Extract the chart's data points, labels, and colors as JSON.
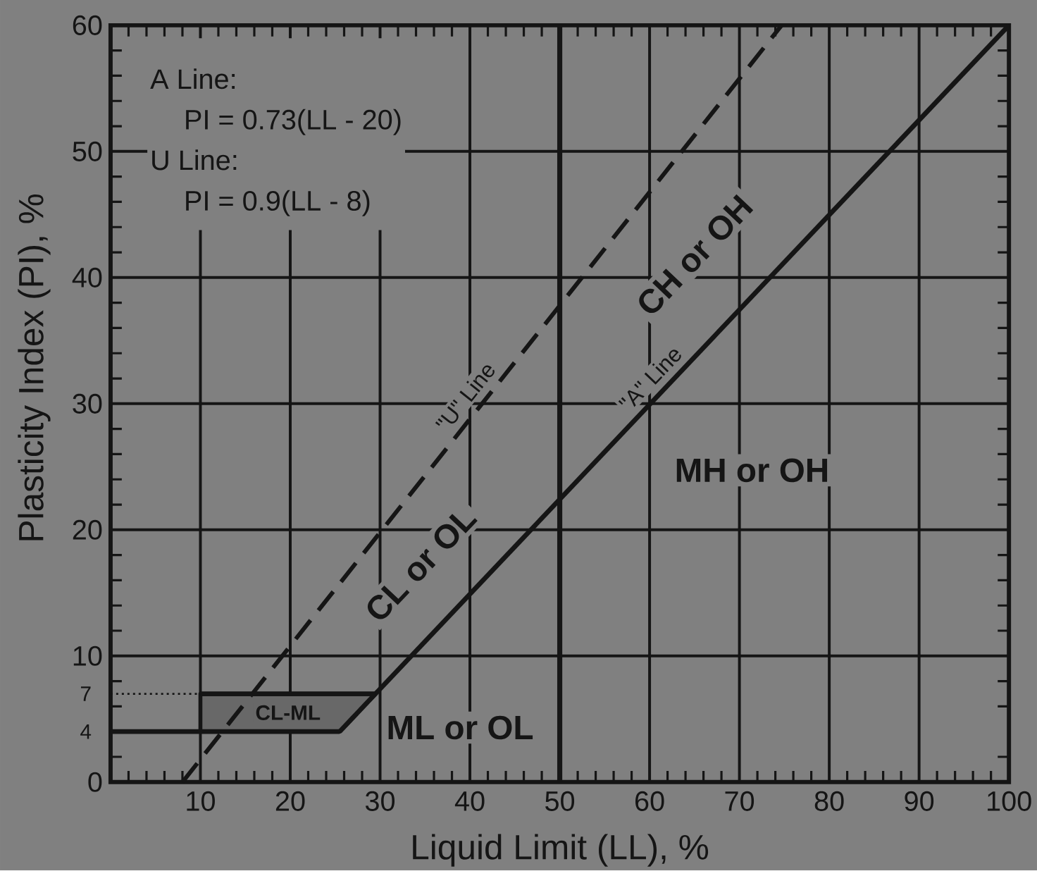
{
  "chart_data": {
    "type": "line",
    "xlabel": "Liquid Limit (LL), %",
    "ylabel": "Plasticity Index (PI), %",
    "xlim": [
      0,
      100
    ],
    "ylim": [
      0,
      60
    ],
    "xticks": [
      {
        "value": 2,
        "label": null
      },
      {
        "value": 4,
        "label": null
      },
      {
        "value": 6,
        "label": null
      },
      {
        "value": 8,
        "label": null
      },
      10,
      {
        "value": 12,
        "label": null
      },
      {
        "value": 14,
        "label": null
      },
      {
        "value": 16,
        "label": null
      },
      {
        "value": 18,
        "label": null
      },
      20,
      {
        "value": 22,
        "label": null
      },
      {
        "value": 24,
        "label": null
      },
      {
        "value": 26,
        "label": null
      },
      {
        "value": 28,
        "label": null
      },
      30,
      {
        "value": 32,
        "label": null
      },
      {
        "value": 34,
        "label": null
      },
      {
        "value": 36,
        "label": null
      },
      {
        "value": 38,
        "label": null
      },
      40,
      {
        "value": 42,
        "label": null
      },
      {
        "value": 44,
        "label": null
      },
      {
        "value": 46,
        "label": null
      },
      {
        "value": 48,
        "label": null
      },
      50,
      {
        "value": 52,
        "label": null
      },
      {
        "value": 54,
        "label": null
      },
      {
        "value": 56,
        "label": null
      },
      {
        "value": 58,
        "label": null
      },
      60,
      {
        "value": 62,
        "label": null
      },
      {
        "value": 64,
        "label": null
      },
      {
        "value": 66,
        "label": null
      },
      {
        "value": 68,
        "label": null
      },
      70,
      {
        "value": 72,
        "label": null
      },
      {
        "value": 74,
        "label": null
      },
      {
        "value": 76,
        "label": null
      },
      {
        "value": 78,
        "label": null
      },
      80,
      {
        "value": 82,
        "label": null
      },
      {
        "value": 84,
        "label": null
      },
      {
        "value": 86,
        "label": null
      },
      {
        "value": 88,
        "label": null
      },
      90,
      {
        "value": 92,
        "label": null
      },
      {
        "value": 94,
        "label": null
      },
      {
        "value": 96,
        "label": null
      },
      {
        "value": 98,
        "label": null
      },
      100
    ],
    "yticks": [
      0,
      {
        "value": 2,
        "label": null
      },
      4,
      {
        "value": 6,
        "label": null
      },
      7,
      {
        "value": 8,
        "label": null
      },
      10,
      {
        "value": 12,
        "label": null
      },
      {
        "value": 14,
        "label": null
      },
      {
        "value": 16,
        "label": null
      },
      {
        "value": 18,
        "label": null
      },
      20,
      {
        "value": 22,
        "label": null
      },
      {
        "value": 24,
        "label": null
      },
      {
        "value": 26,
        "label": null
      },
      {
        "value": 28,
        "label": null
      },
      30,
      {
        "value": 32,
        "label": null
      },
      {
        "value": 34,
        "label": null
      },
      {
        "value": 36,
        "label": null
      },
      {
        "value": 38,
        "label": null
      },
      40,
      {
        "value": 42,
        "label": null
      },
      {
        "value": 44,
        "label": null
      },
      {
        "value": 46,
        "label": null
      },
      {
        "value": 48,
        "label": null
      },
      50,
      {
        "value": 52,
        "label": null
      },
      {
        "value": 54,
        "label": null
      },
      {
        "value": 56,
        "label": null
      },
      {
        "value": 58,
        "label": null
      },
      60
    ],
    "grid": true,
    "series": [
      {
        "name": "\"A\" Line",
        "color": "#151515",
        "x": [
          25.5,
          100
        ],
        "values": [
          4,
          60
        ]
      },
      {
        "name": "\"U\" Line",
        "color": "#151515",
        "x": [
          8,
          74.7
        ],
        "values": [
          0,
          60
        ],
        "line_style": "dashed"
      },
      {
        "color": "#151515",
        "x": [
          0,
          25.5
        ],
        "values": [
          4,
          4
        ]
      },
      {
        "name": "CL-ML",
        "color": "#151515",
        "x": [
          10,
          25.5,
          29.5
        ],
        "values": [
          7,
          7,
          7
        ],
        "lower": [
          4,
          4,
          7
        ],
        "upper": [
          7,
          7,
          7
        ]
      },
      {
        "color": "#151515",
        "x": [
          0,
          10
        ],
        "values": [
          7,
          7
        ],
        "line_style": "dotted"
      }
    ],
    "ref_lines": [
      {
        "axis": "x",
        "value": 50,
        "color": "#151515"
      }
    ],
    "annotations": [
      "A Line:",
      "PI = 0.73(LL - 20)",
      "U Line:",
      "PI = 0.9(LL - 8)",
      "CL or OL",
      "CH or OH",
      "MH or OH",
      "ML or OL"
    ]
  }
}
